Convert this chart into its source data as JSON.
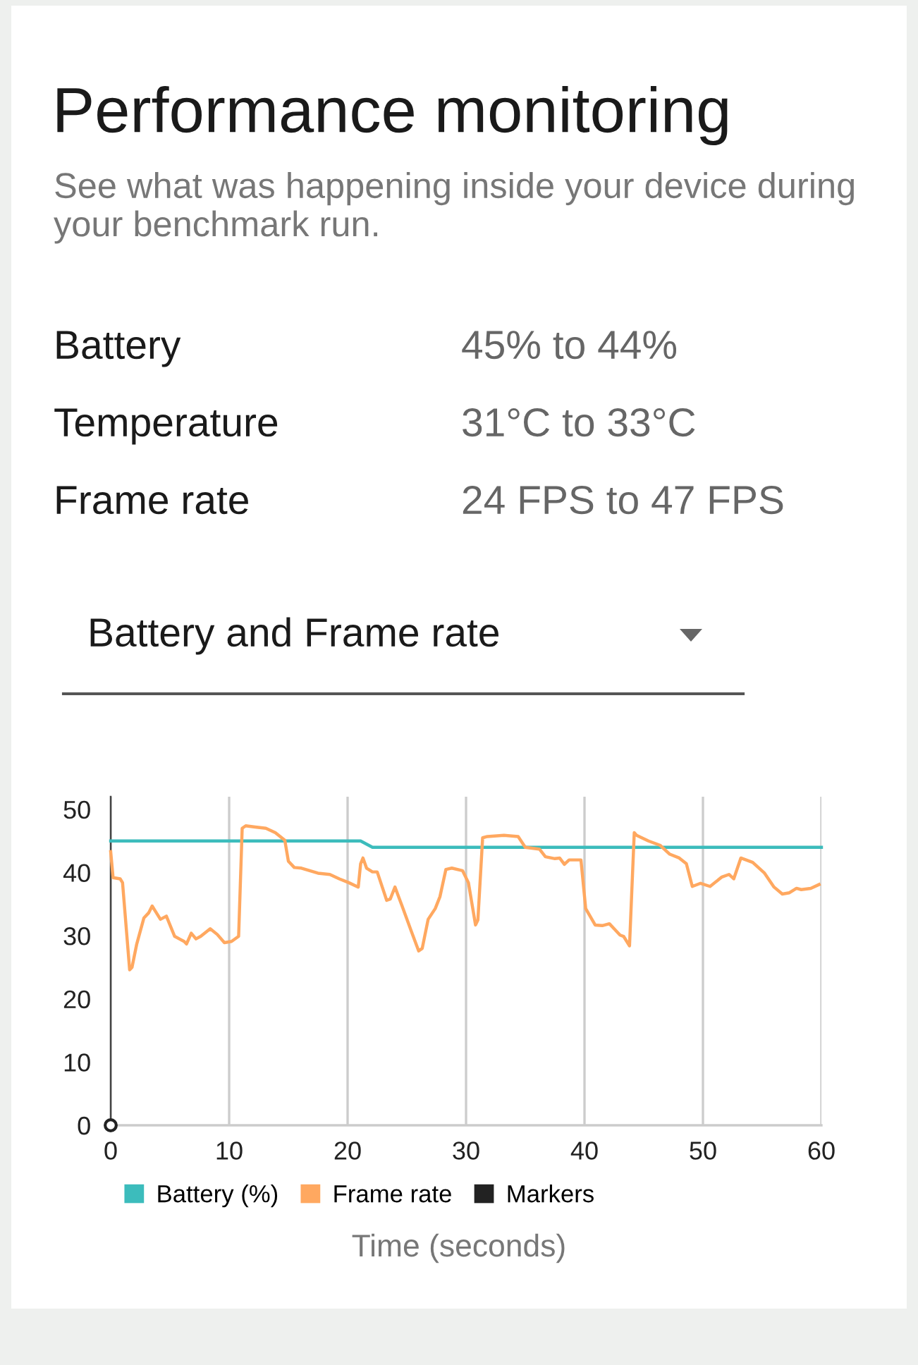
{
  "chart_data": [
    {
      "type": "other",
      "title": "Performance monitoring",
      "subtitle": "See what was happening inside your device during your benchmark run.",
      "annotations": [
        "Battery",
        "45% to 44%",
        "Temperature",
        "31°C to 33°C",
        "Frame rate",
        "24 FPS to 47 FPS"
      ]
    },
    {
      "type": "line",
      "title": "Battery and Frame rate",
      "xlabel": "Time (seconds)",
      "xlim": [
        0,
        60
      ],
      "xticks": [
        0,
        10,
        20,
        30,
        40,
        50,
        60
      ],
      "ylim": [
        0,
        52
      ],
      "yticks": [
        0,
        10,
        20,
        30,
        40,
        50
      ],
      "grid": "x",
      "legend": "bottom",
      "line_style": "solid",
      "series": [
        {
          "name": "Battery (%)",
          "color": "#3cbcbc",
          "x": [
            0,
            21.1,
            22.1,
            60
          ],
          "values": [
            45,
            45,
            44,
            44
          ]
        },
        {
          "name": "Frame rate",
          "color": "#ffa860",
          "x": [
            0,
            0.2,
            0.8,
            1.0,
            1.6,
            1.8,
            2.2,
            2.8,
            3.2,
            3.5,
            3.8,
            4.2,
            4.7,
            5.4,
            6.2,
            6.4,
            6.8,
            7.2,
            7.6,
            8.4,
            9.0,
            9.6,
            10.2,
            10.8,
            11.1,
            11.4,
            12.2,
            13.1,
            13.9,
            14.7,
            15.0,
            15.5,
            16.1,
            17.5,
            18.5,
            19.3,
            20.1,
            20.9,
            21.1,
            21.3,
            21.6,
            22.1,
            22.5,
            23.3,
            23.6,
            24.0,
            24.6,
            25.4,
            26.0,
            26.3,
            26.8,
            27.4,
            27.8,
            28.3,
            28.8,
            29.7,
            30.2,
            30.8,
            31.0,
            31.4,
            31.8,
            33.2,
            34.4,
            35.0,
            36.2,
            36.7,
            37.5,
            37.9,
            38.3,
            38.7,
            39.7,
            40.1,
            40.9,
            41.5,
            42.1,
            42.5,
            43.0,
            43.3,
            43.8,
            44.2,
            44.4,
            45.4,
            46.4,
            47.2,
            48.0,
            48.6,
            49.1,
            49.8,
            50.6,
            51.6,
            52.2,
            52.6,
            53.2,
            54.2,
            55.2,
            56.0,
            56.7,
            57.3,
            57.9,
            58.3,
            59.1,
            59.8
          ],
          "values": [
            43.3,
            39.2,
            39.0,
            38.4,
            24.6,
            25.0,
            28.7,
            32.8,
            33.6,
            34.7,
            33.8,
            32.6,
            33.1,
            29.9,
            29.1,
            28.7,
            30.4,
            29.5,
            29.9,
            31.1,
            30.2,
            28.9,
            29.1,
            29.9,
            47.0,
            47.4,
            47.2,
            47.0,
            46.3,
            45.1,
            41.8,
            40.8,
            40.7,
            39.9,
            39.7,
            39.0,
            38.4,
            37.7,
            41.4,
            42.3,
            40.7,
            40.1,
            40.1,
            35.6,
            35.8,
            37.7,
            34.7,
            30.6,
            27.6,
            28.0,
            32.6,
            34.3,
            36.2,
            40.5,
            40.7,
            40.3,
            38.4,
            31.7,
            32.5,
            45.5,
            45.7,
            45.9,
            45.7,
            44.0,
            43.7,
            42.5,
            42.2,
            42.3,
            41.3,
            42.0,
            42.0,
            34.3,
            31.7,
            31.6,
            31.9,
            31.1,
            30.1,
            29.9,
            28.4,
            46.3,
            45.9,
            45.0,
            44.3,
            42.9,
            42.3,
            41.4,
            37.8,
            38.3,
            37.8,
            39.3,
            39.7,
            39.0,
            42.3,
            41.6,
            39.9,
            37.7,
            36.6,
            36.8,
            37.5,
            37.3,
            37.5,
            38.1
          ]
        },
        {
          "name": "Markers",
          "type": "scatter",
          "marker": "circle",
          "color": "#222222",
          "x": [
            0
          ],
          "values": [
            0
          ]
        }
      ]
    }
  ]
}
